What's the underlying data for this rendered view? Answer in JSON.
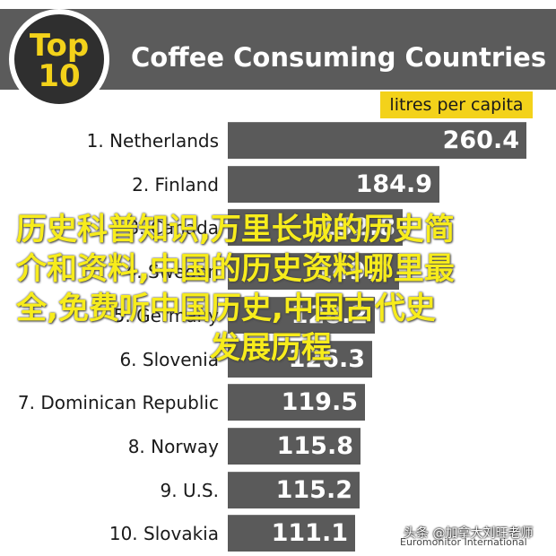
{
  "header": {
    "badge_top": "Top",
    "badge_number": "10",
    "title": "Coffee Consuming Countries",
    "unit_label": "litres per capita"
  },
  "chart_data": {
    "type": "bar",
    "orientation": "horizontal",
    "title": "Coffee Consuming Countries",
    "unit": "litres per capita",
    "categories": [
      "1. Netherlands",
      "2. Finland",
      "3. Canada",
      "4. Sweden",
      "5. Germany",
      "6. Slovenia",
      "7. Dominican Republic",
      "8. Norway",
      "9. U.S.",
      "10. Slovakia"
    ],
    "values": [
      260.4,
      184.9,
      152.8,
      149.7,
      128.2,
      126.3,
      119.5,
      115.8,
      115.2,
      111.1
    ],
    "value_labels": [
      "260.4",
      "184.9",
      "152.8",
      "149.7",
      "128.2",
      "126.3",
      "119.5",
      "115.8",
      "115.2",
      "111.1"
    ],
    "xlim": [
      0,
      266
    ],
    "colors": {
      "bar": "#5a5a5a",
      "accent": "#f3d21a",
      "header": "#5b5b5b"
    }
  },
  "source": "Euromonitor International",
  "overlay": {
    "watermark_lines": [
      "历史科普知识,万里长城的历史简",
      "介和资料,中国的历史资料哪里最",
      "全,免费听中国历史,中国古代史",
      "发展历程"
    ],
    "credit": "头条 @加拿大刘旺老师"
  }
}
